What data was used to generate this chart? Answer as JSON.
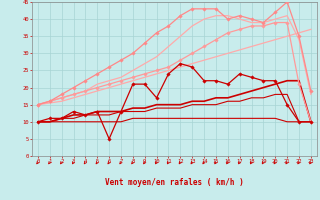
{
  "xlabel": "Vent moyen/en rafales ( km/h )",
  "xlim": [
    -0.5,
    23.5
  ],
  "ylim": [
    0,
    45
  ],
  "yticks": [
    0,
    5,
    10,
    15,
    20,
    25,
    30,
    35,
    40,
    45
  ],
  "xticks": [
    0,
    1,
    2,
    3,
    4,
    5,
    6,
    7,
    8,
    9,
    10,
    11,
    12,
    13,
    14,
    15,
    16,
    17,
    18,
    19,
    20,
    21,
    22,
    23
  ],
  "background_color": "#c8ecec",
  "grid_color": "#a8d4d4",
  "series": [
    {
      "x": [
        0,
        1,
        2,
        3,
        4,
        5,
        6,
        7,
        8,
        9,
        10,
        11,
        12,
        13,
        14,
        15,
        16,
        17,
        18,
        19,
        20,
        21,
        22,
        23
      ],
      "y": [
        10,
        11,
        11,
        13,
        12,
        13,
        5,
        13,
        21,
        21,
        17,
        24,
        27,
        26,
        22,
        22,
        21,
        24,
        23,
        22,
        22,
        15,
        10,
        10
      ],
      "color": "#cc0000",
      "lw": 0.9,
      "marker": "D",
      "ms": 1.8,
      "zorder": 5
    },
    {
      "x": [
        0,
        1,
        2,
        3,
        4,
        5,
        6,
        7,
        8,
        9,
        10,
        11,
        12,
        13,
        14,
        15,
        16,
        17,
        18,
        19,
        20,
        21,
        22,
        23
      ],
      "y": [
        10,
        10,
        11,
        12,
        12,
        13,
        13,
        13,
        14,
        14,
        15,
        15,
        15,
        16,
        16,
        17,
        17,
        18,
        19,
        20,
        21,
        22,
        22,
        10
      ],
      "color": "#cc0000",
      "lw": 1.2,
      "marker": null,
      "ms": 0,
      "zorder": 4
    },
    {
      "x": [
        0,
        1,
        2,
        3,
        4,
        5,
        6,
        7,
        8,
        9,
        10,
        11,
        12,
        13,
        14,
        15,
        16,
        17,
        18,
        19,
        20,
        21,
        22,
        23
      ],
      "y": [
        10,
        10,
        11,
        11,
        12,
        12,
        12,
        13,
        13,
        13,
        14,
        14,
        14,
        15,
        15,
        15,
        16,
        16,
        17,
        17,
        18,
        18,
        10,
        10
      ],
      "color": "#cc0000",
      "lw": 0.8,
      "marker": null,
      "ms": 0,
      "zorder": 3
    },
    {
      "x": [
        0,
        1,
        2,
        3,
        4,
        5,
        6,
        7,
        8,
        9,
        10,
        11,
        12,
        13,
        14,
        15,
        16,
        17,
        18,
        19,
        20,
        21,
        22,
        23
      ],
      "y": [
        10,
        10,
        10,
        10,
        10,
        10,
        10,
        10,
        11,
        11,
        11,
        11,
        11,
        11,
        11,
        11,
        11,
        11,
        11,
        11,
        11,
        10,
        10,
        10
      ],
      "color": "#cc0000",
      "lw": 0.8,
      "marker": null,
      "ms": 0,
      "zorder": 3
    },
    {
      "x": [
        0,
        1,
        2,
        3,
        4,
        5,
        6,
        7,
        8,
        9,
        10,
        11,
        12,
        13,
        14,
        15,
        16,
        17,
        18,
        19,
        20,
        21,
        22,
        23
      ],
      "y": [
        15,
        15.5,
        16,
        17,
        18,
        19,
        20,
        21,
        22,
        23,
        24,
        25,
        26,
        27,
        28,
        29,
        30,
        31,
        32,
        33,
        34,
        35,
        36,
        37
      ],
      "color": "#ffaaaa",
      "lw": 0.9,
      "marker": null,
      "ms": 0,
      "zorder": 2
    },
    {
      "x": [
        0,
        1,
        2,
        3,
        4,
        5,
        6,
        7,
        8,
        9,
        10,
        11,
        12,
        13,
        14,
        15,
        16,
        17,
        18,
        19,
        20,
        21,
        22,
        23
      ],
      "y": [
        15,
        16,
        17,
        18,
        19,
        21,
        22,
        23,
        25,
        27,
        29,
        32,
        35,
        38,
        40,
        41,
        41,
        40,
        39,
        39,
        40,
        41,
        34,
        18
      ],
      "color": "#ffaaaa",
      "lw": 0.9,
      "marker": null,
      "ms": 0,
      "zorder": 2
    },
    {
      "x": [
        0,
        1,
        2,
        3,
        4,
        5,
        6,
        7,
        8,
        9,
        10,
        11,
        12,
        13,
        14,
        15,
        16,
        17,
        18,
        19,
        20,
        21,
        22,
        23
      ],
      "y": [
        15,
        16,
        18,
        20,
        22,
        24,
        26,
        28,
        30,
        33,
        36,
        38,
        41,
        43,
        43,
        43,
        40,
        41,
        40,
        39,
        42,
        45,
        35,
        19
      ],
      "color": "#ff8888",
      "lw": 0.9,
      "marker": "D",
      "ms": 1.8,
      "zorder": 6
    },
    {
      "x": [
        0,
        1,
        2,
        3,
        4,
        5,
        6,
        7,
        8,
        9,
        10,
        11,
        12,
        13,
        14,
        15,
        16,
        17,
        18,
        19,
        20,
        21,
        22,
        23
      ],
      "y": [
        15,
        16,
        17,
        18,
        19,
        20,
        21,
        22,
        23,
        24,
        25,
        26,
        28,
        30,
        32,
        34,
        36,
        37,
        38,
        38,
        39,
        39,
        21,
        10
      ],
      "color": "#ff9999",
      "lw": 0.9,
      "marker": "D",
      "ms": 1.8,
      "zorder": 4
    }
  ],
  "arrow_color": "#cc0000",
  "tick_color": "#cc0000",
  "label_color": "#cc0000",
  "axis_color": "#888888"
}
